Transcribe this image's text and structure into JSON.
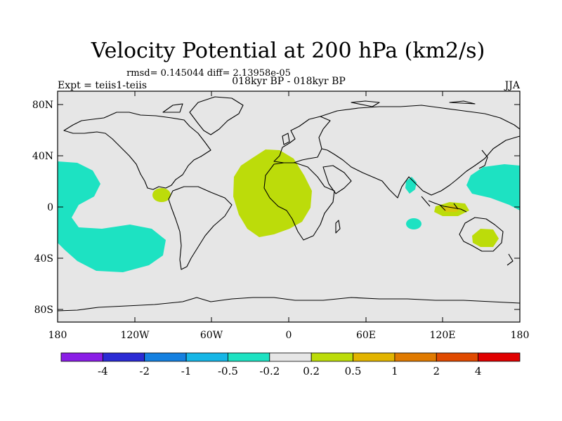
{
  "title": "Velocity Potential at 200 hPa (km2/s)",
  "stats_line": "rmsd= 0.145044 diff= 2.13958e-05",
  "subtitle": "018kyr BP - 018kyr BP",
  "left_label": "Expt = teiis1-teiis",
  "season_label": "JJA",
  "map": {
    "projection": "cylindrical-equidistant",
    "background": "#e6e6e6",
    "lat_ticks": [
      "80N",
      "40N",
      "0",
      "40S",
      "80S"
    ],
    "lon_ticks": [
      "180",
      "120W",
      "60W",
      "0",
      "60E",
      "120E",
      "180"
    ]
  },
  "colorbar": {
    "colors": [
      "#8a1ee6",
      "#2b2bd4",
      "#1580e0",
      "#16b6e6",
      "#1de2c2",
      "#e6e6e6",
      "#bcdc0a",
      "#e2b400",
      "#e07a00",
      "#e04a00",
      "#e00000"
    ],
    "labels": [
      "-4",
      "-2",
      "-1",
      "-0.5",
      "-0.2",
      "0.2",
      "0.5",
      "1",
      "2",
      "4"
    ]
  },
  "anomaly_colors": {
    "negative": "#1de2c2",
    "positive": "#bcdc0a",
    "small_positive": "#d8c80a"
  },
  "coastline_color": "#000000"
}
